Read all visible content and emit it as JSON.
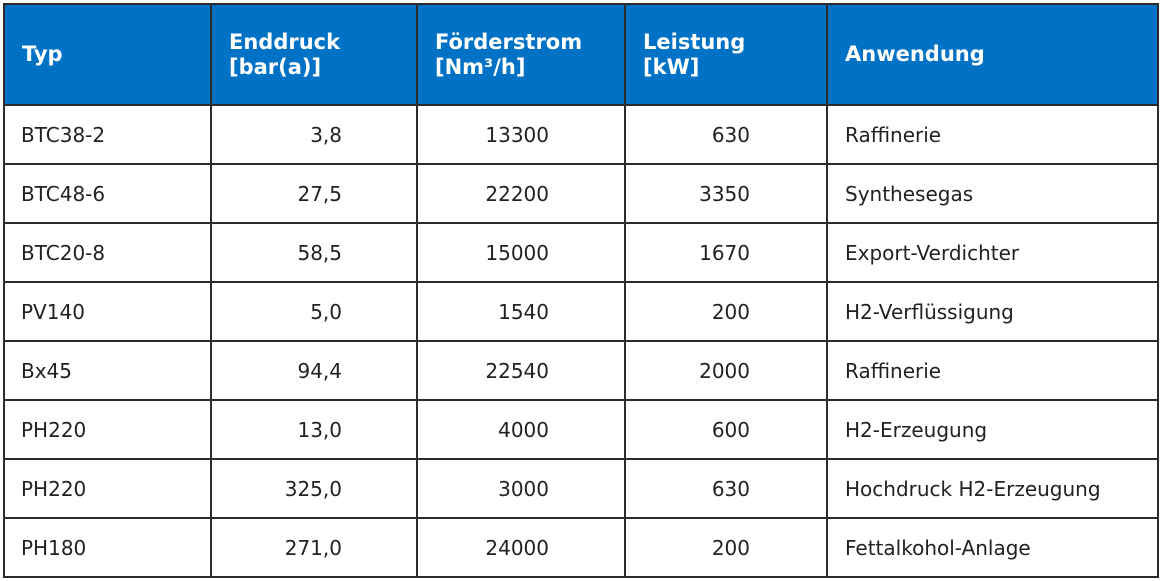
{
  "table": {
    "headers": [
      {
        "line1": "Typ",
        "line2": ""
      },
      {
        "line1": "Enddruck",
        "line2": "[bar(a)]"
      },
      {
        "line1": "Förderstrom",
        "line2": "[Nm³/h]"
      },
      {
        "line1": "Leistung",
        "line2": "[kW]"
      },
      {
        "line1": "Anwendung",
        "line2": ""
      }
    ],
    "rows": [
      [
        "BTC38-2",
        "3,8",
        "13300",
        "630",
        "Raffinerie"
      ],
      [
        "BTC48-6",
        "27,5",
        "22200",
        "3350",
        "Synthesegas"
      ],
      [
        "BTC20-8",
        "58,5",
        "15000",
        "1670",
        "Export-Verdichter"
      ],
      [
        "PV140",
        "5,0",
        "1540",
        "200",
        "H2-Verflüssigung"
      ],
      [
        "Bx45",
        "94,4",
        "22540",
        "2000",
        "Raffinerie"
      ],
      [
        "PH220",
        "13,0",
        "4000",
        "600",
        "H2-Erzeugung"
      ],
      [
        "PH220",
        "325,0",
        "3000",
        "630",
        "Hochdruck H2-Erzeugung"
      ],
      [
        "PH180",
        "271,0",
        "24000",
        "200",
        "Fettalkohol-Anlage"
      ]
    ]
  },
  "colors": {
    "header_background": "#0072c6",
    "header_text": "#ffffff",
    "border": "#2b2b2b",
    "body_text": "#222222"
  }
}
